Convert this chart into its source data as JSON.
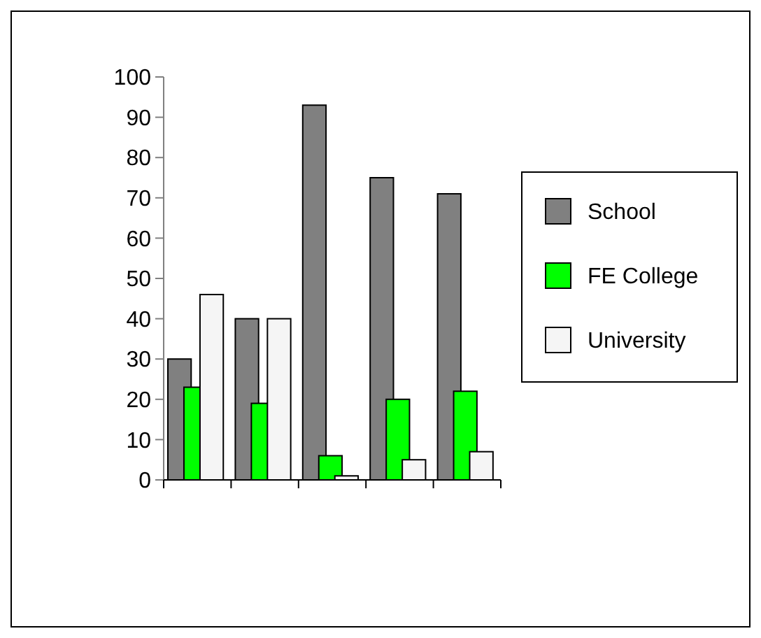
{
  "chart_data": {
    "type": "bar",
    "categories": [
      null,
      null,
      null,
      null,
      null
    ],
    "series": [
      {
        "name": "School",
        "color": "#808080",
        "values": [
          30,
          40,
          93,
          75,
          71
        ]
      },
      {
        "name": "FE College",
        "color": "#00ff00",
        "values": [
          23,
          19,
          6,
          20,
          22
        ]
      },
      {
        "name": "University",
        "color": "#f5f5f5",
        "values": [
          46,
          40,
          1,
          5,
          7
        ]
      }
    ],
    "ylim": [
      0,
      100
    ],
    "yticks": [
      0,
      10,
      20,
      30,
      40,
      50,
      60,
      70,
      80,
      90,
      100
    ],
    "grid": false,
    "legend": "right"
  }
}
